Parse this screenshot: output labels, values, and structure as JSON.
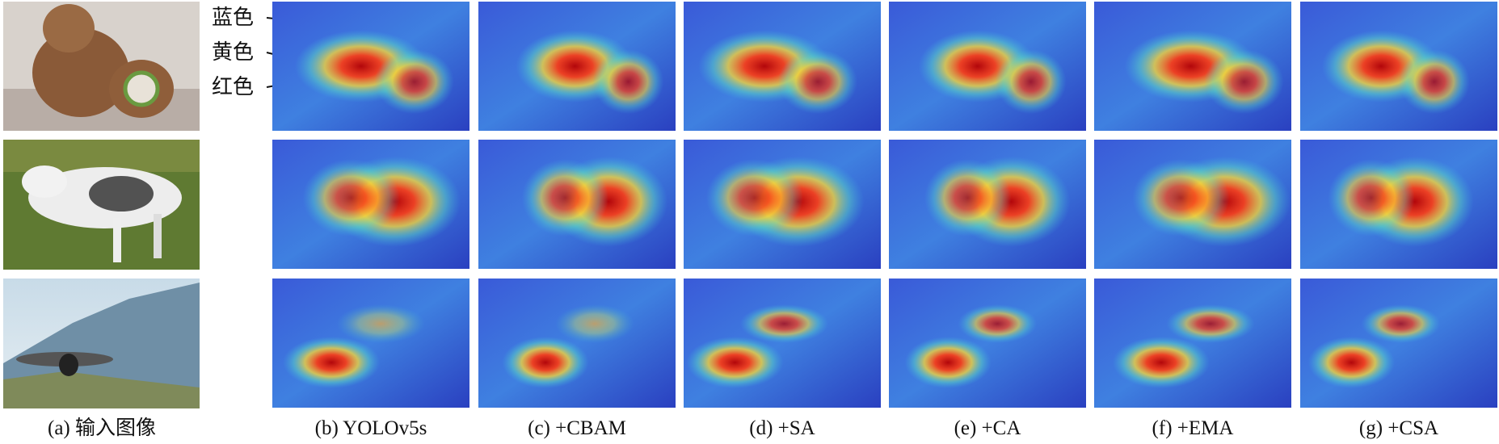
{
  "figure": {
    "captions": [
      "(a) 输入图像",
      "(b) YOLOv5s",
      "(c) +CBAM",
      "(d) +SA",
      "(e) +CA",
      "(f) +EMA",
      "(g) +CSA"
    ],
    "color_labels": [
      "蓝色",
      "黄色",
      "红色"
    ]
  }
}
